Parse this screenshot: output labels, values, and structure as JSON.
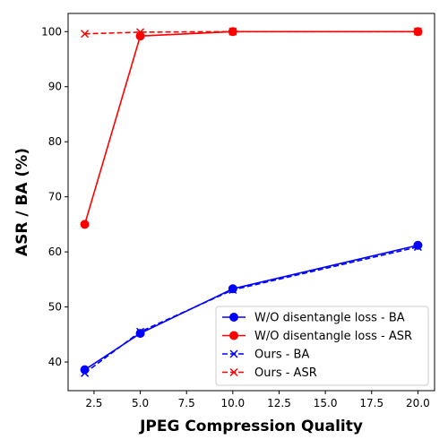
{
  "chart_data": {
    "type": "line",
    "xlabel": "JPEG Compression Quality",
    "ylabel": "ASR / BA (%)",
    "xlim": [
      1.1,
      20.9
    ],
    "ylim": [
      34.8,
      103.3
    ],
    "xticks": [
      2.5,
      5.0,
      7.5,
      10.0,
      12.5,
      15.0,
      17.5,
      20.0
    ],
    "xtick_labels": [
      "2.5",
      "5.0",
      "7.5",
      "10.0",
      "12.5",
      "15.0",
      "17.5",
      "20.0"
    ],
    "yticks": [
      40,
      50,
      60,
      70,
      80,
      90,
      100
    ],
    "ytick_labels": [
      "40",
      "50",
      "60",
      "70",
      "80",
      "90",
      "100"
    ],
    "grid": false,
    "legend_position": "lower-right",
    "x": [
      2,
      5,
      10,
      20
    ],
    "series": [
      {
        "name": "W/O disentangle loss - BA",
        "values": [
          38.6,
          45.2,
          53.3,
          61.2
        ],
        "color": "#0000ff",
        "linestyle": "solid",
        "marker": "circle"
      },
      {
        "name": "W/O disentangle loss - ASR",
        "values": [
          65.0,
          99.2,
          100.0,
          100.0
        ],
        "color": "#ff0000",
        "linestyle": "solid",
        "marker": "circle"
      },
      {
        "name": "Ours - BA",
        "values": [
          38.0,
          45.5,
          53.1,
          60.9
        ],
        "color": "#0000ff",
        "linestyle": "dashed",
        "marker": "x"
      },
      {
        "name": "Ours - ASR",
        "values": [
          99.6,
          99.9,
          100.0,
          100.0
        ],
        "color": "#ff0000",
        "linestyle": "dashed",
        "marker": "x"
      }
    ]
  }
}
